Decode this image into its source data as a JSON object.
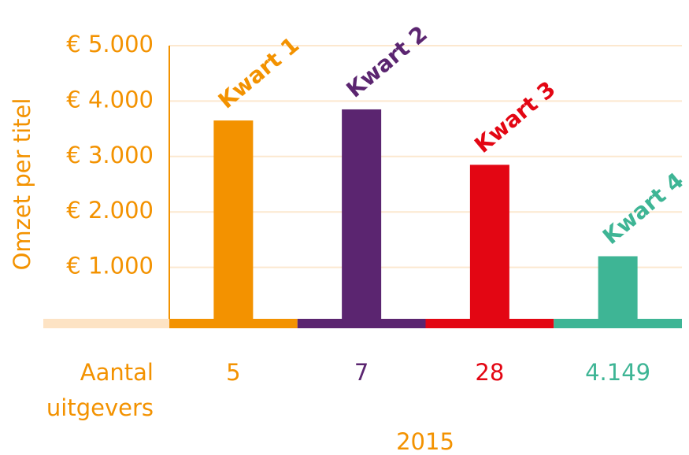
{
  "chart_data": {
    "type": "bar",
    "y_label": "Omzet per titel",
    "x_label": "2015",
    "categories": [
      "Kwart 1",
      "Kwart 2",
      "Kwart 3",
      "Kwart 4"
    ],
    "values": [
      3650,
      3850,
      2850,
      1200
    ],
    "colors": [
      "#f39200",
      "#5b2570",
      "#e30613",
      "#3eb595"
    ],
    "axis_color": "#f39200",
    "grid": true,
    "ylim": [
      0,
      5000
    ],
    "yticks": [
      {
        "value": 1000,
        "label": "€ 1.000"
      },
      {
        "value": 2000,
        "label": "€ 2.000"
      },
      {
        "value": 3000,
        "label": "€ 3.000"
      },
      {
        "value": 4000,
        "label": "€ 4.000"
      },
      {
        "value": 5000,
        "label": "€ 5.000"
      }
    ],
    "publishers": {
      "label_lines": [
        "Aantal",
        "uitgevers"
      ],
      "values": [
        5,
        7,
        28,
        4149
      ],
      "value_labels": [
        "5",
        "7",
        "28",
        "4.149"
      ]
    }
  }
}
